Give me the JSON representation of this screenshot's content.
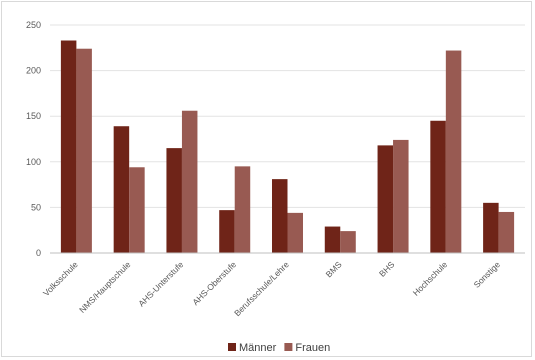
{
  "chart_data": {
    "type": "bar",
    "title": "",
    "xlabel": "",
    "ylabel": "",
    "ylim": [
      0,
      250
    ],
    "yticks": [
      0,
      50,
      100,
      150,
      200,
      250
    ],
    "grid": true,
    "legend_position": "bottom",
    "categories": [
      "Volksschule",
      "NMS/Hauptschule",
      "AHS-Unterstufe",
      "AHS-Oberstufe",
      "Berufsschule/Lehre",
      "BMS",
      "BHS",
      "Hochschule",
      "Sonstige"
    ],
    "series": [
      {
        "name": "Männer",
        "color": "#6f2418",
        "values": [
          233,
          139,
          115,
          47,
          81,
          29,
          118,
          145,
          55
        ]
      },
      {
        "name": "Frauen",
        "color": "#985a52",
        "values": [
          224,
          94,
          156,
          95,
          44,
          24,
          124,
          222,
          45
        ]
      }
    ]
  }
}
